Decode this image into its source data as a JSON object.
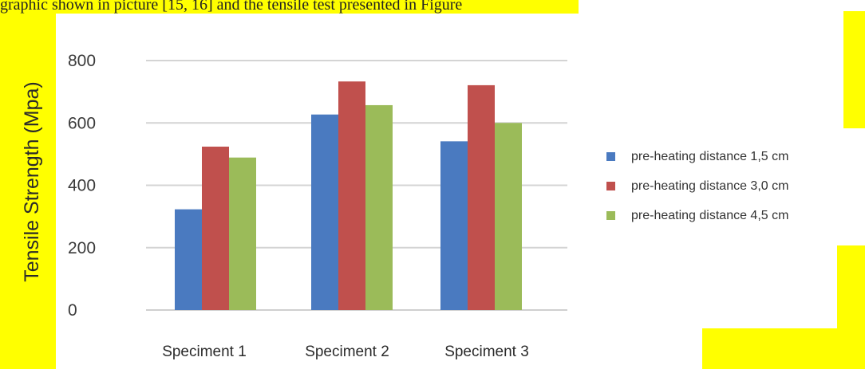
{
  "caption_text": "graphic shown in picture [15, 16] and the tensile test presented in Figure",
  "highlight_color": "#ffff00",
  "chart_data": {
    "type": "bar",
    "title": "",
    "xlabel": "",
    "ylabel": "Tensile Strength (Mpa)",
    "ylim": [
      0,
      800
    ],
    "yticks": [
      0,
      200,
      400,
      600,
      800
    ],
    "grid": true,
    "legend_position": "right",
    "categories": [
      "Speciment 1",
      "Speciment 2",
      "Speciment 3"
    ],
    "series": [
      {
        "name": "pre-heating distance 1,5 cm",
        "color": "#4a7ac0",
        "values": [
          323,
          627,
          541
        ]
      },
      {
        "name": "pre-heating distance 3,0 cm",
        "color": "#c0504d",
        "values": [
          524,
          733,
          721
        ]
      },
      {
        "name": "pre-heating distance 4,5 cm",
        "color": "#9bbb59",
        "values": [
          489,
          657,
          600
        ]
      }
    ]
  }
}
